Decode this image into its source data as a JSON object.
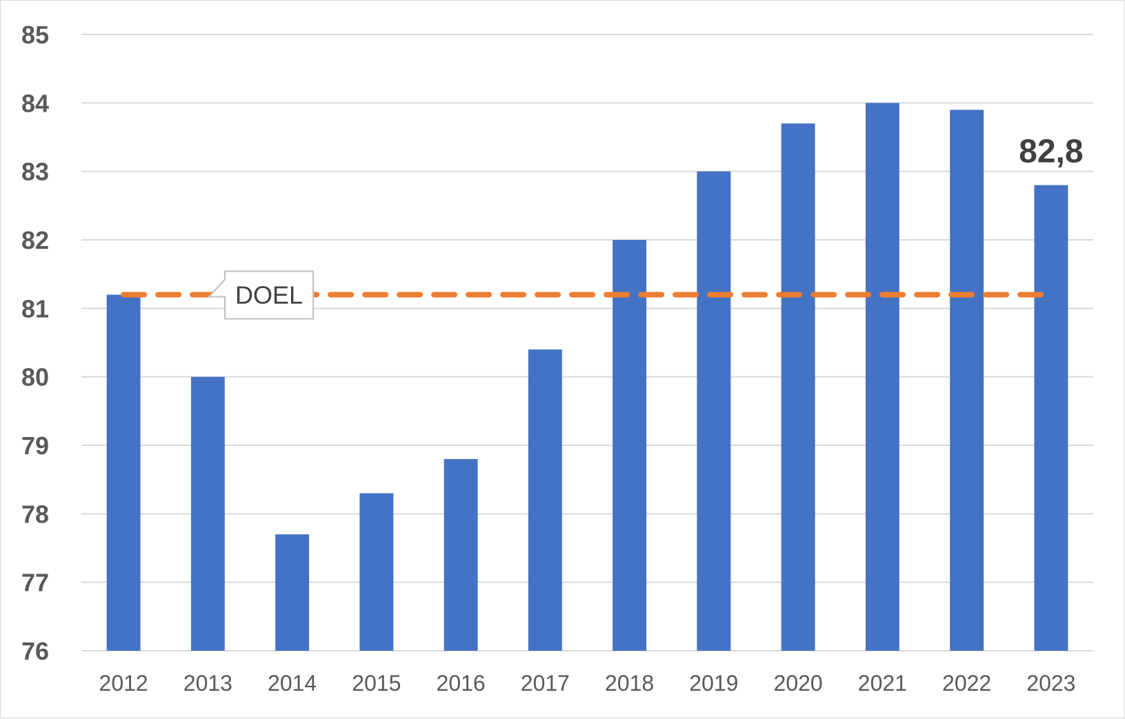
{
  "chart_data": {
    "type": "bar",
    "categories": [
      "2012",
      "2013",
      "2014",
      "2015",
      "2016",
      "2017",
      "2018",
      "2019",
      "2020",
      "2021",
      "2022",
      "2023"
    ],
    "series": [
      {
        "values": [
          81.2,
          80.0,
          77.7,
          78.3,
          78.8,
          80.4,
          82.0,
          83.0,
          83.7,
          84.0,
          83.9,
          82.8
        ],
        "color": "#4472c4"
      }
    ],
    "target": {
      "label": "DOEL",
      "values": [
        81.2,
        81.2,
        81.2,
        81.2,
        81.2,
        81.2,
        81.2,
        81.2,
        81.2,
        81.2,
        81.2,
        81.2
      ],
      "color": "#ed7d31",
      "style": "dashed"
    },
    "data_labels": [
      {
        "category": "2023",
        "text": "82,8"
      }
    ],
    "ylim": [
      76,
      85
    ],
    "yticks": [
      "76",
      "77",
      "78",
      "79",
      "80",
      "81",
      "82",
      "83",
      "84",
      "85"
    ],
    "grid": true,
    "legend": "none",
    "gridline_color": "#d9d9d9"
  }
}
